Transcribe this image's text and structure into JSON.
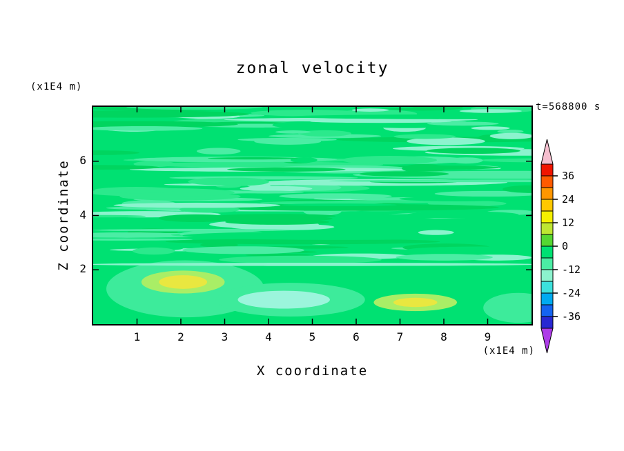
{
  "chart_data": {
    "type": "heatmap",
    "title": "zonal velocity",
    "timestamp": "t=568800 s",
    "x_axis": {
      "label": "X coordinate",
      "units": "(x1E4 m)",
      "range": [
        0,
        10
      ],
      "ticks": [
        1,
        2,
        3,
        4,
        5,
        6,
        7,
        8,
        9
      ]
    },
    "y_axis": {
      "label": "Z coordinate",
      "units": "(x1E4 m)",
      "range": [
        0,
        8
      ],
      "ticks": [
        2,
        4,
        6
      ]
    },
    "colorbar": {
      "tick_labels": [
        "36",
        "24",
        "12",
        "0",
        "-12",
        "-24",
        "-36"
      ],
      "level_step": 6,
      "levels_range": [
        -42,
        42
      ],
      "band_colors_top_to_bottom": [
        "#F01400",
        "#FF5A00",
        "#FF9600",
        "#FFC800",
        "#F5F000",
        "#BEE632",
        "#55D732",
        "#00E172",
        "#4BEDA4",
        "#8CF3CE",
        "#3CE1DC",
        "#00AAF0",
        "#1464F0",
        "#2828D2"
      ],
      "over_arrow_color": "#F5BECE",
      "under_arrow_color": "#AE3CE8"
    },
    "field": {
      "description": "near-zero streaky zonal velocity field; horizontal light-green/seafoam streaks above z=2.3, smooth blobs below with two yellow maxima and one pale-cyan minimum",
      "base_color": "#00E172",
      "streak_colors": [
        "#4BEDA4",
        "#8CF3CE",
        "#2BE98C",
        "#00D55F",
        "#00E172"
      ],
      "seed": 11,
      "streak_count": 170,
      "streak_region_z": [
        2.35,
        8
      ],
      "features": [
        {
          "x": 2.1,
          "z": 1.3,
          "rx": 1.8,
          "rz": 1.05,
          "color": "#3DEB9B"
        },
        {
          "x": 2.05,
          "z": 1.55,
          "rx": 0.95,
          "rz": 0.42,
          "color": "#A9EE66"
        },
        {
          "x": 2.05,
          "z": 1.55,
          "rx": 0.55,
          "rz": 0.25,
          "color": "#E9E740"
        },
        {
          "x": 4.5,
          "z": 0.9,
          "rx": 1.7,
          "rz": 0.62,
          "color": "#3DEB9B"
        },
        {
          "x": 4.35,
          "z": 0.9,
          "rx": 1.05,
          "rz": 0.33,
          "color": "#9BF5DC"
        },
        {
          "x": 9.7,
          "z": 0.6,
          "rx": 0.8,
          "rz": 0.55,
          "color": "#3DEB9B"
        },
        {
          "x": 7.35,
          "z": 0.8,
          "rx": 0.95,
          "rz": 0.32,
          "color": "#A9EE66"
        },
        {
          "x": 7.35,
          "z": 0.8,
          "rx": 0.5,
          "rz": 0.17,
          "color": "#E9E740"
        },
        {
          "x": 5.0,
          "z": 2.2,
          "rx": 5.2,
          "rz": 0.06,
          "color": "#8CF3CE"
        }
      ]
    }
  }
}
